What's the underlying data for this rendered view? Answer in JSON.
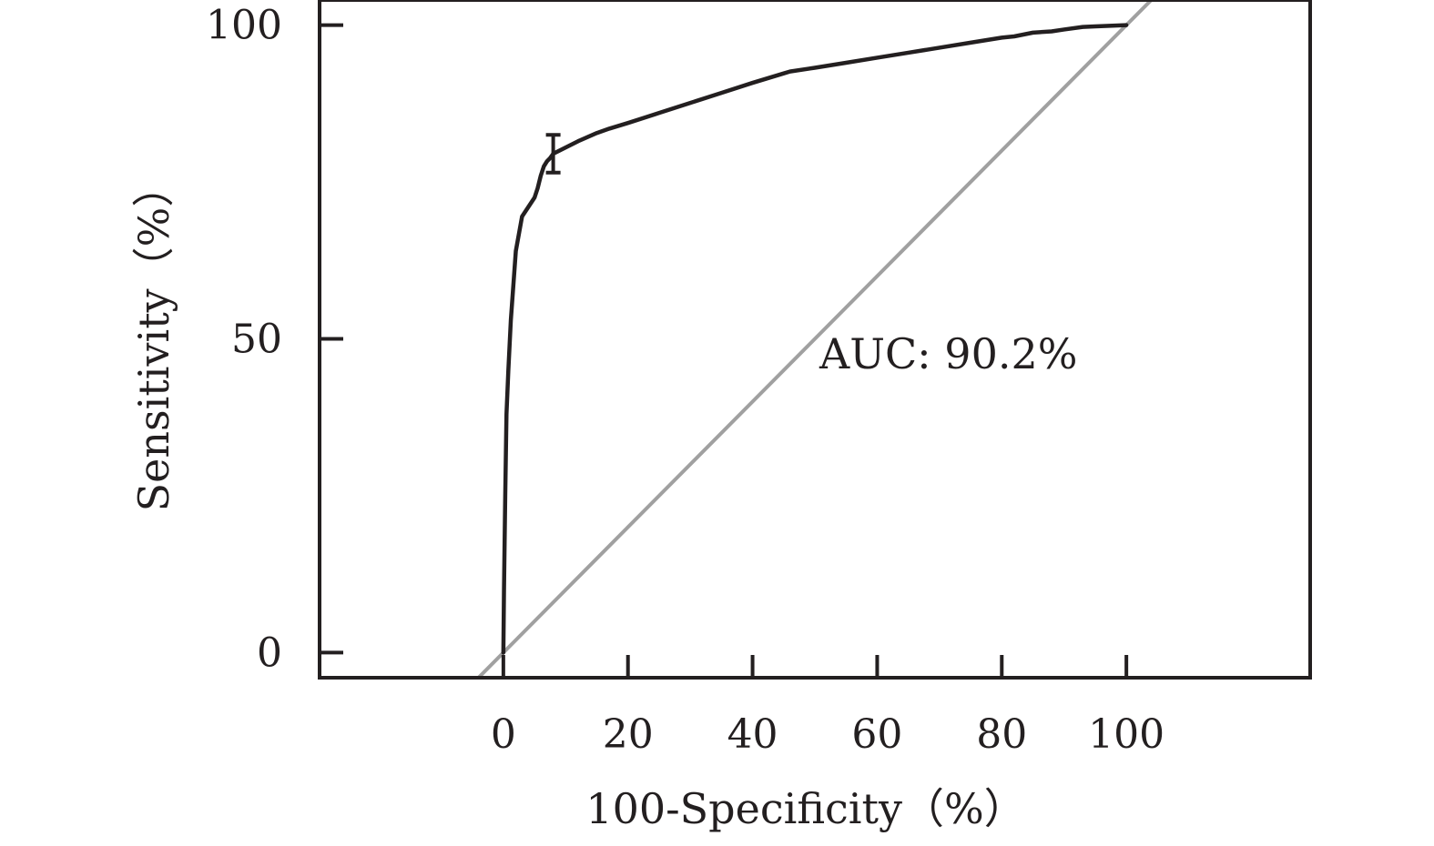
{
  "chart_data": {
    "type": "line",
    "xlabel": "100-Specificity（%）",
    "ylabel": "Sensitivity（%）",
    "x_ticks": [
      "0",
      "20",
      "40",
      "60",
      "80",
      "100"
    ],
    "y_ticks": [
      "0",
      "50",
      "100"
    ],
    "xlim": [
      -29.5,
      129.5
    ],
    "ylim": [
      -4,
      104
    ],
    "grid": false,
    "legend": "none",
    "annotation": "AUC: 90.2%",
    "colors": {
      "roc_curve": "#231f20",
      "reference_line": "#a0a0a0",
      "axes": "#231f20"
    },
    "series": [
      {
        "x": [
          0,
          0.1,
          0.3,
          0.5,
          0.8,
          1.2,
          2,
          3,
          4,
          5,
          5.5,
          6,
          6.5,
          7,
          7.5,
          8,
          10,
          12,
          15,
          17,
          20,
          25,
          30,
          35,
          40,
          45,
          46,
          50,
          55,
          60,
          65,
          70,
          75,
          80,
          82,
          85,
          88,
          90,
          93,
          95,
          100
        ],
        "y": [
          0,
          10,
          25,
          38,
          45,
          53,
          64,
          69.5,
          71,
          72.5,
          74,
          76,
          77.5,
          78.3,
          78.8,
          79.5,
          80.5,
          81.5,
          82.8,
          83.5,
          84.4,
          86,
          87.6,
          89.2,
          90.8,
          92.3,
          92.6,
          93.2,
          94,
          94.8,
          95.6,
          96.4,
          97.2,
          98,
          98.2,
          98.8,
          99,
          99.3,
          99.7,
          99.8,
          100
        ]
      },
      {
        "x": [
          -4,
          104
        ],
        "y": [
          -4,
          104
        ]
      }
    ],
    "error_bar": {
      "x": 8,
      "y": 79.5,
      "low": 76.5,
      "high": 82.5
    }
  }
}
